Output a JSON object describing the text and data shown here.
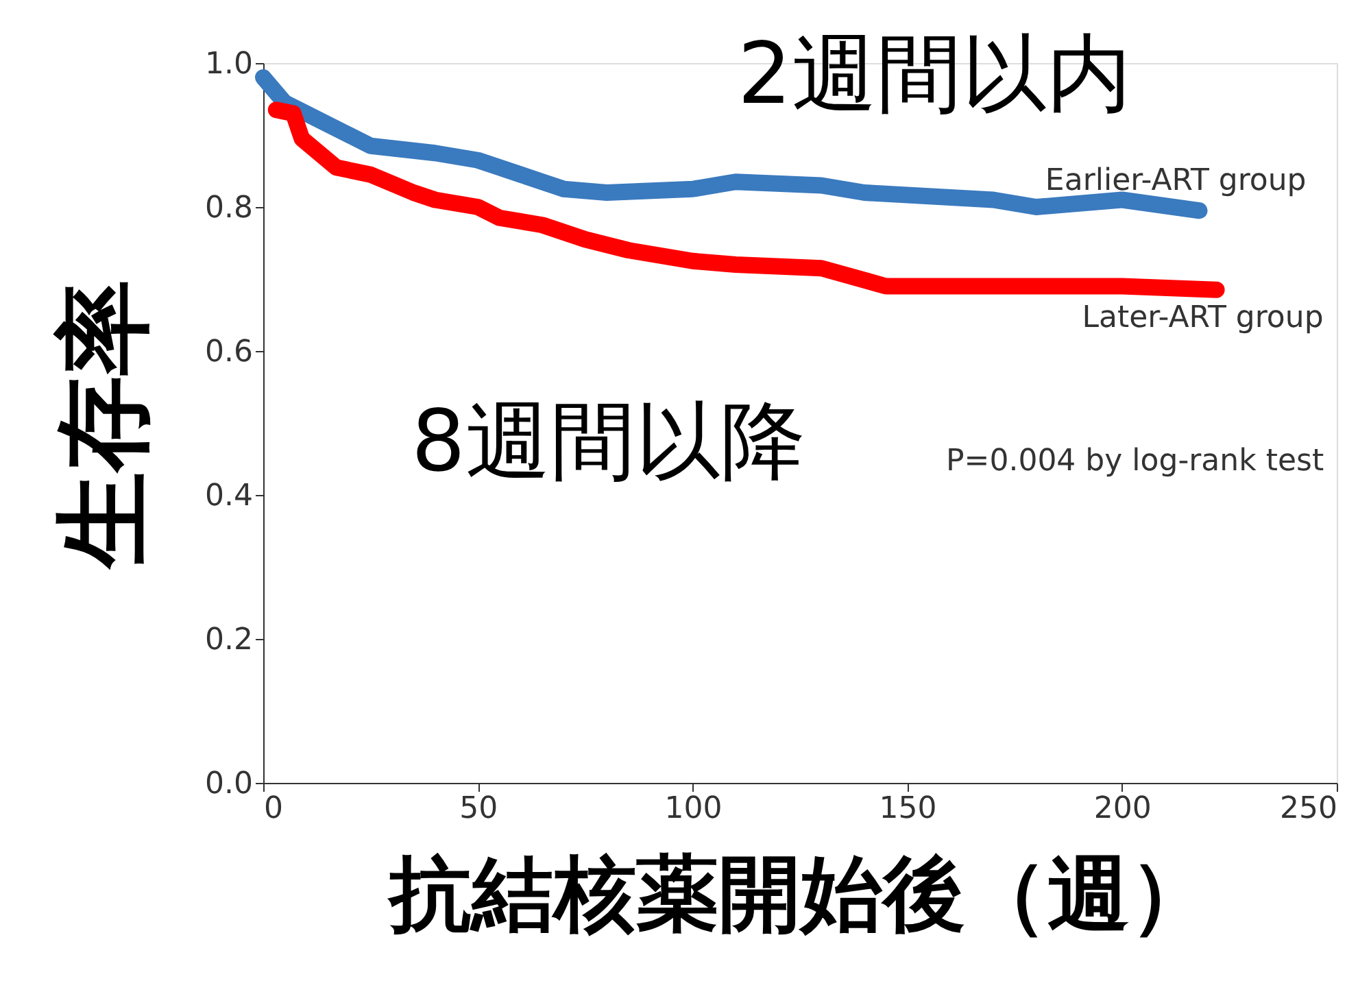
{
  "chart_data": {
    "type": "line",
    "xlabel": "抗結核薬開始後（週）",
    "ylabel": "生存率",
    "xlim": [
      0,
      250
    ],
    "xticks": [
      0,
      50,
      100,
      150,
      200,
      250
    ],
    "ylim": [
      0,
      1.0
    ],
    "yticks": [
      {
        "value": 0,
        "label": "0.0"
      },
      0.2,
      0.4,
      0.6,
      0.8,
      {
        "value": 1,
        "label": "1.0"
      }
    ],
    "grid": false,
    "legend": false,
    "line_style": "solid",
    "series": [
      {
        "name": "Earlier-ART group",
        "color": "#3a7abf",
        "x": [
          0,
          5,
          10,
          20,
          25,
          40,
          50,
          60,
          70,
          80,
          100,
          110,
          130,
          140,
          170,
          180,
          200,
          218
        ],
        "values": [
          0.98,
          0.945,
          0.93,
          0.9,
          0.885,
          0.875,
          0.865,
          0.845,
          0.825,
          0.82,
          0.825,
          0.835,
          0.83,
          0.82,
          0.81,
          0.8,
          0.81,
          0.795
        ]
      },
      {
        "name": "Later-ART group",
        "color": "#ff0000",
        "x": [
          3,
          7,
          9,
          12,
          17,
          25,
          35,
          40,
          50,
          55,
          65,
          75,
          85,
          100,
          110,
          130,
          145,
          170,
          200,
          222
        ],
        "values": [
          0.935,
          0.93,
          0.895,
          0.88,
          0.855,
          0.845,
          0.82,
          0.81,
          0.8,
          0.785,
          0.775,
          0.755,
          0.74,
          0.725,
          0.72,
          0.715,
          0.69,
          0.69,
          0.69,
          0.685
        ]
      }
    ],
    "annotations": [
      "2週間以内",
      "8週間以降",
      "P=0.004 by log-rank test"
    ]
  }
}
